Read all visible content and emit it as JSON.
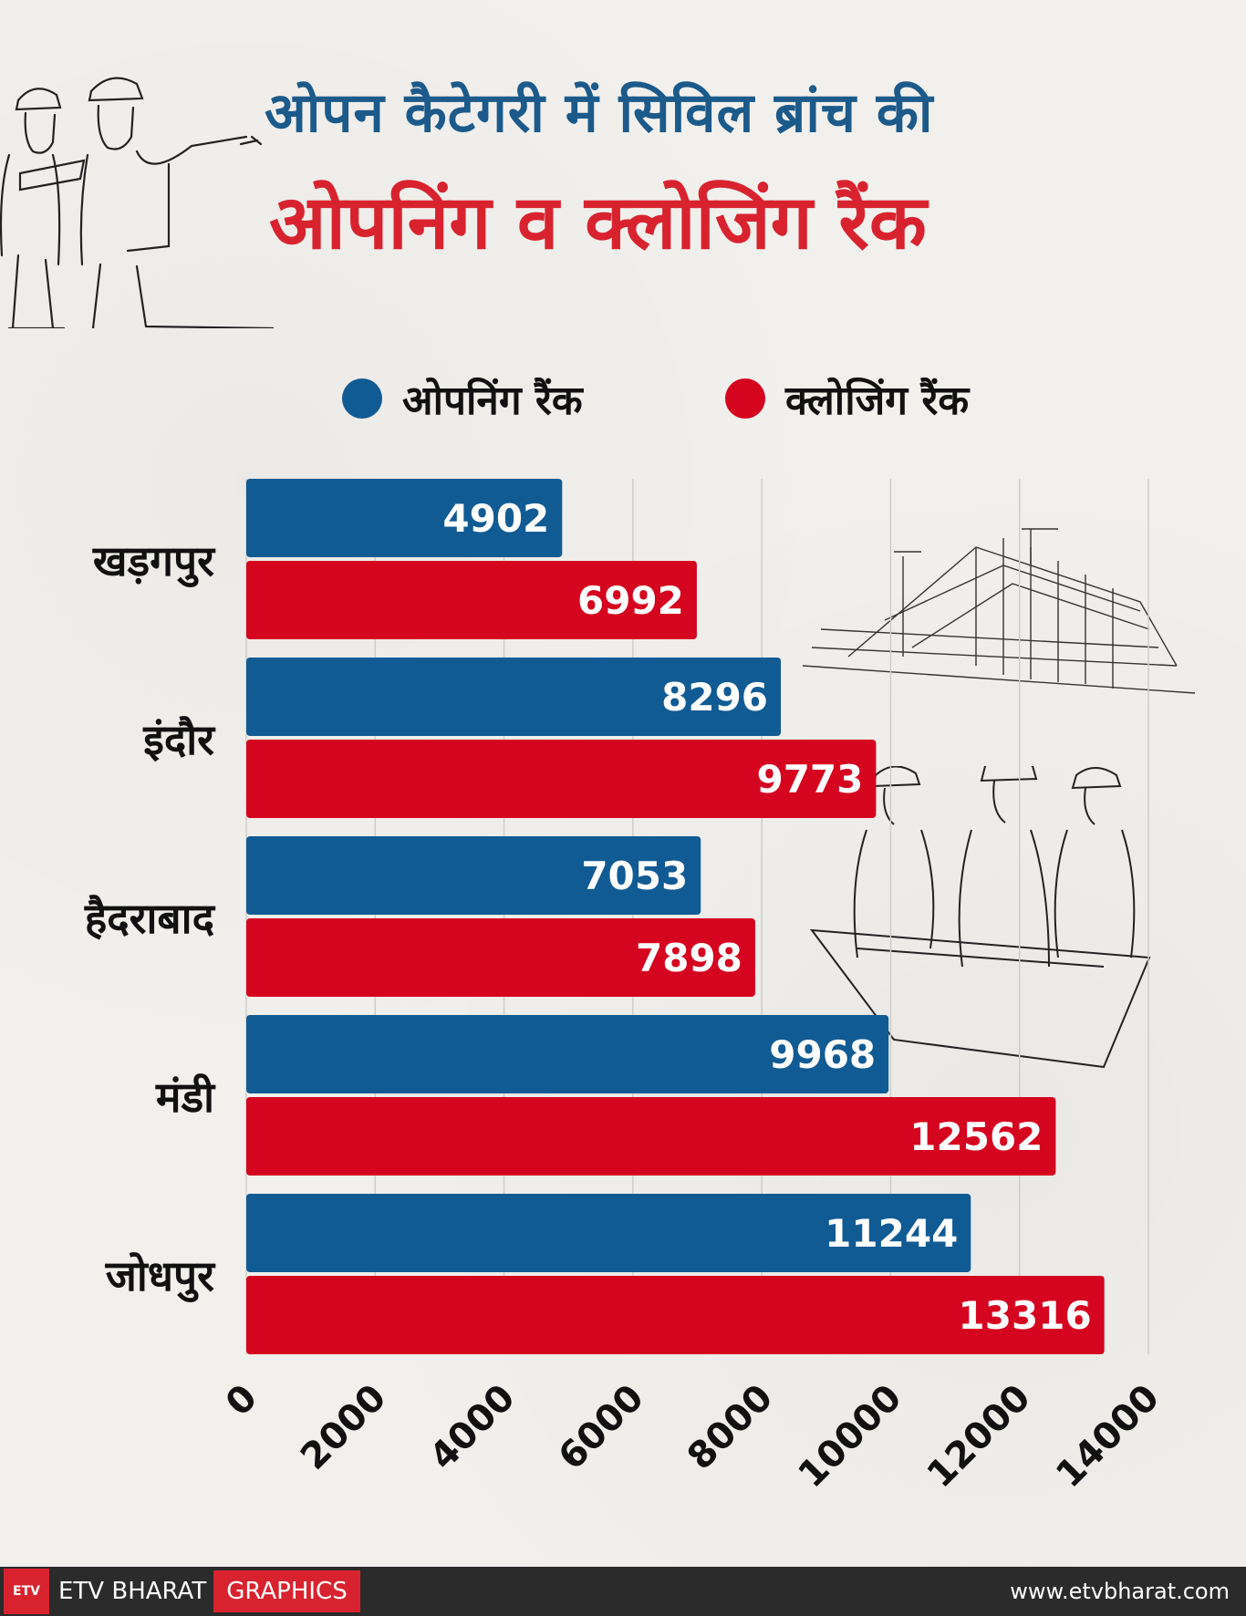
{
  "header": {
    "title_line1": "ओपन कैटेगरी में सिविल ब्रांच की",
    "title_line2": "ओपनिंग व क्लोजिंग रैंक"
  },
  "legend": {
    "opening_label": "ओपनिंग रैंक",
    "closing_label": "क्लोजिंग रैंक"
  },
  "colors": {
    "opening": "#115b94",
    "closing": "#d5041f"
  },
  "chart_data": {
    "type": "bar",
    "orientation": "horizontal",
    "title": "ओपन कैटेगरी में सिविल ब्रांच की ओपनिंग व क्लोजिंग रैंक",
    "categories": [
      "खड़गपुर",
      "इंदौर",
      "हैदराबाद",
      "मंडी",
      "जोधपुर"
    ],
    "series": [
      {
        "name": "ओपनिंग रैंक",
        "values": [
          4902,
          8296,
          7053,
          9968,
          11244
        ]
      },
      {
        "name": "क्लोजिंग रैंक",
        "values": [
          6992,
          9773,
          7898,
          12562,
          13316
        ]
      }
    ],
    "xlim": [
      0,
      14000
    ],
    "xticks": [
      0,
      2000,
      4000,
      6000,
      8000,
      10000,
      12000,
      14000
    ],
    "grid": true,
    "legend_position": "top"
  },
  "footer": {
    "logo_text": "ETV",
    "brand": "ETV BHARAT",
    "tag": "GRAPHICS",
    "website": "www.etvbharat.com"
  }
}
